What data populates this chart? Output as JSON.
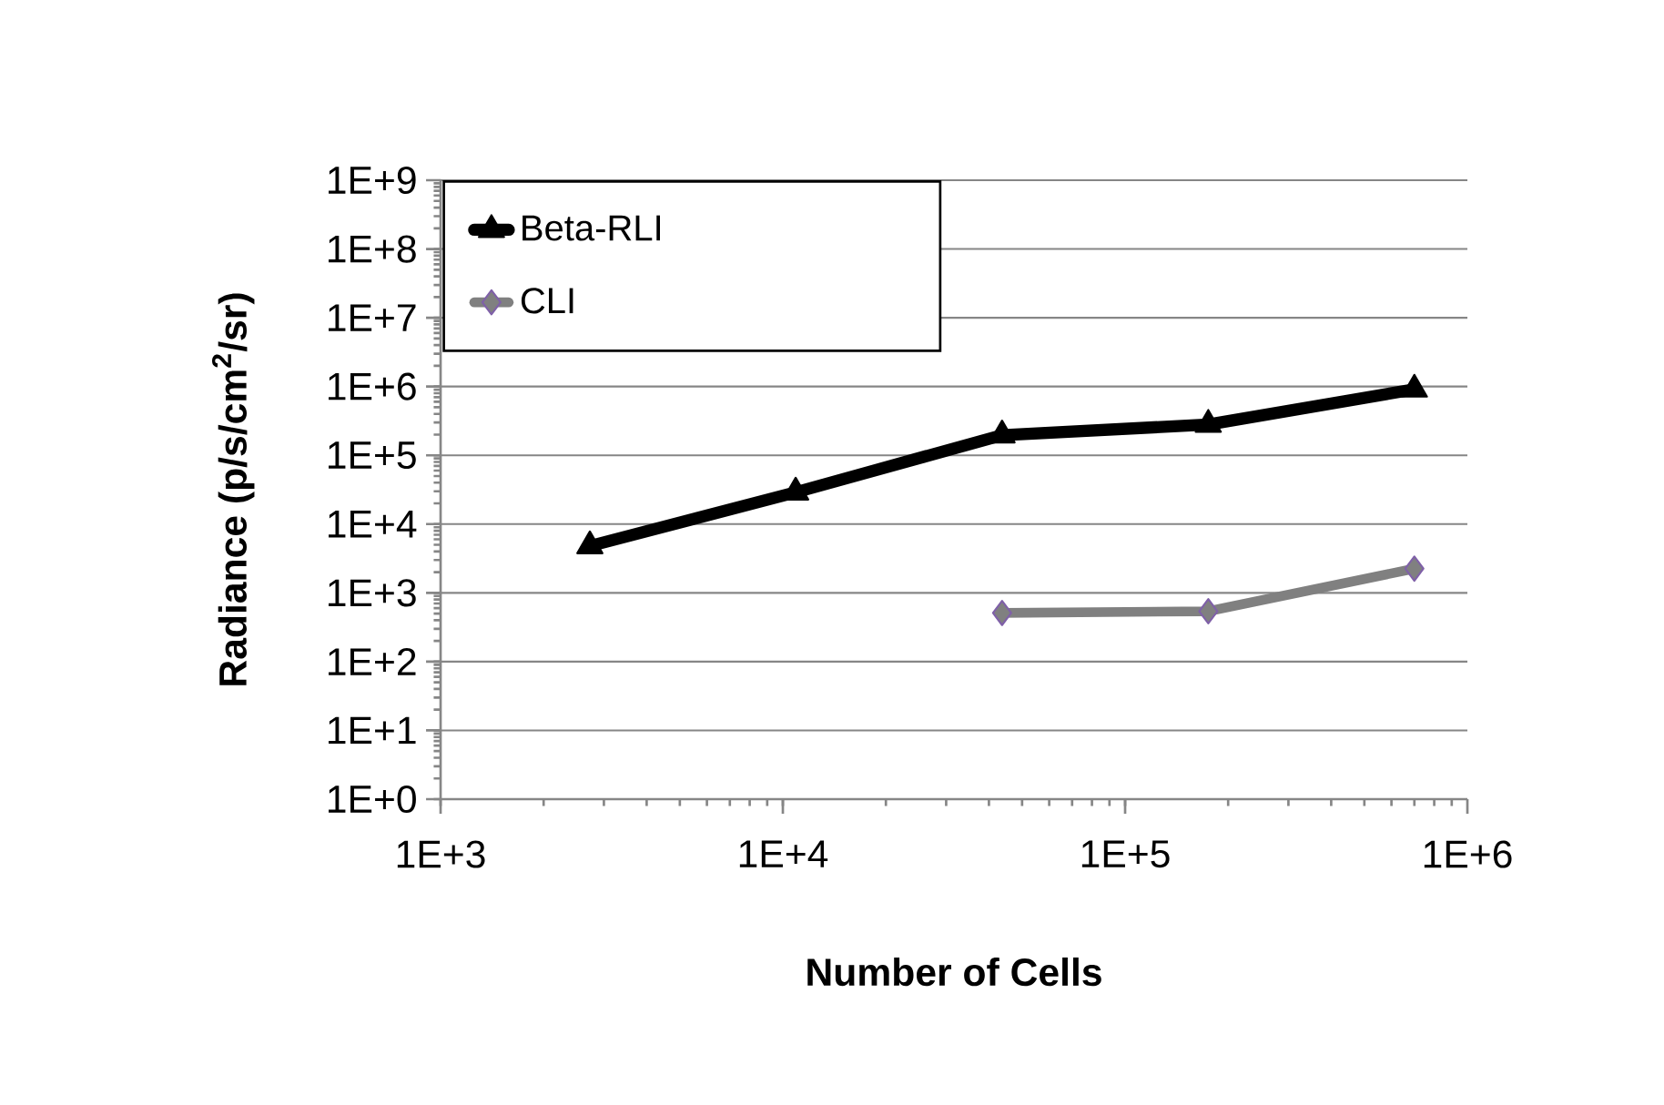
{
  "chart_data": {
    "type": "line",
    "xlabel": "Number of Cells",
    "ylabel": "Radiance (p/s/cm$^{2}$/sr)",
    "log": "xy",
    "grid": "y",
    "legend": "top left",
    "xlim": [
      1000,
      1000000
    ],
    "xticks": [
      {
        "value": 1000,
        "label": "1E+3"
      },
      {
        "value": 10000,
        "label": "1E+4"
      },
      {
        "value": 100000,
        "label": "1E+5"
      },
      {
        "value": 1000000,
        "label": "1E+6"
      }
    ],
    "ylim": [
      1,
      1000000000
    ],
    "yticks": [
      {
        "value": 1,
        "label": "1E+0"
      },
      {
        "value": 10,
        "label": "1E+1"
      },
      {
        "value": 100,
        "label": "1E+2"
      },
      {
        "value": 1000,
        "label": "1E+3"
      },
      {
        "value": 10000,
        "label": "1E+4"
      },
      {
        "value": 100000,
        "label": "1E+5"
      },
      {
        "value": 1000000,
        "label": "1E+6"
      },
      {
        "value": 10000000,
        "label": "1E+7"
      },
      {
        "value": 100000000,
        "label": "1E+8"
      },
      {
        "value": 1000000000,
        "label": "1E+9"
      }
    ],
    "series": [
      {
        "name": "Beta-RLI",
        "color": "#000000",
        "marker": "triangle",
        "x": [
          2730,
          10900,
          43700,
          175000,
          700000
        ],
        "values": [
          4800,
          29000,
          196000,
          280000,
          910000
        ]
      },
      {
        "name": "CLI",
        "color": "#808080",
        "marker": "diamond",
        "x": [
          43700,
          175000,
          700000
        ],
        "values": [
          510,
          540,
          2250
        ]
      }
    ]
  }
}
